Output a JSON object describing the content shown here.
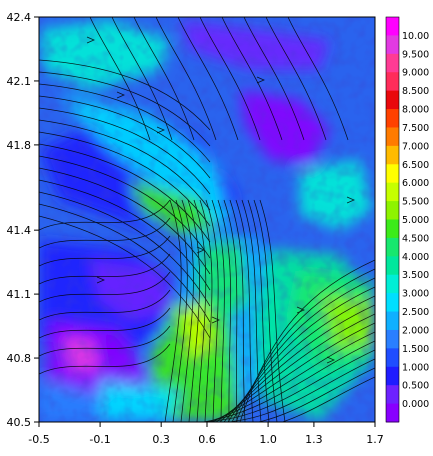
{
  "chart_data": {
    "type": "heatmap",
    "description_units": "wind speed shaded, streamlines overlaid",
    "x_ticks": [
      "-0.5",
      "-0.1",
      "0.3",
      "0.6",
      "1.0",
      "1.3",
      "1.7"
    ],
    "x_tick_values": [
      -0.5,
      -0.1,
      0.3,
      0.6,
      1.0,
      1.3,
      1.7
    ],
    "y_ticks": [
      "42.4",
      "42.1",
      "41.8",
      "41.4",
      "41.1",
      "40.8",
      "40.5"
    ],
    "y_tick_values": [
      42.4,
      42.1,
      41.8,
      41.4,
      41.1,
      40.8,
      40.5
    ],
    "xlim": [
      -0.5,
      1.7
    ],
    "ylim": [
      40.5,
      42.4
    ],
    "colorbar": {
      "labels": [
        "10.00",
        "9.500",
        "9.000",
        "8.500",
        "8.000",
        "7.500",
        "7.000",
        "6.500",
        "6.000",
        "5.500",
        "5.000",
        "4.500",
        "4.000",
        "3.500",
        "3.000",
        "2.500",
        "2.000",
        "1.500",
        "1.000",
        "0.500",
        "0.000"
      ],
      "colors": [
        "#ff00ff",
        "#e23ae2",
        "#ff3b94",
        "#ff2c5a",
        "#e9080c",
        "#ff4100",
        "#ff7b00",
        "#ffbb00",
        "#ffff00",
        "#c6ff00",
        "#8ef300",
        "#3ceb1a",
        "#17e86e",
        "#00e89d",
        "#00eed6",
        "#00dfff",
        "#0fb0ff",
        "#2a7fff",
        "#1f4dff",
        "#1f1cff",
        "#6d22ff",
        "#8800ff"
      ]
    }
  }
}
